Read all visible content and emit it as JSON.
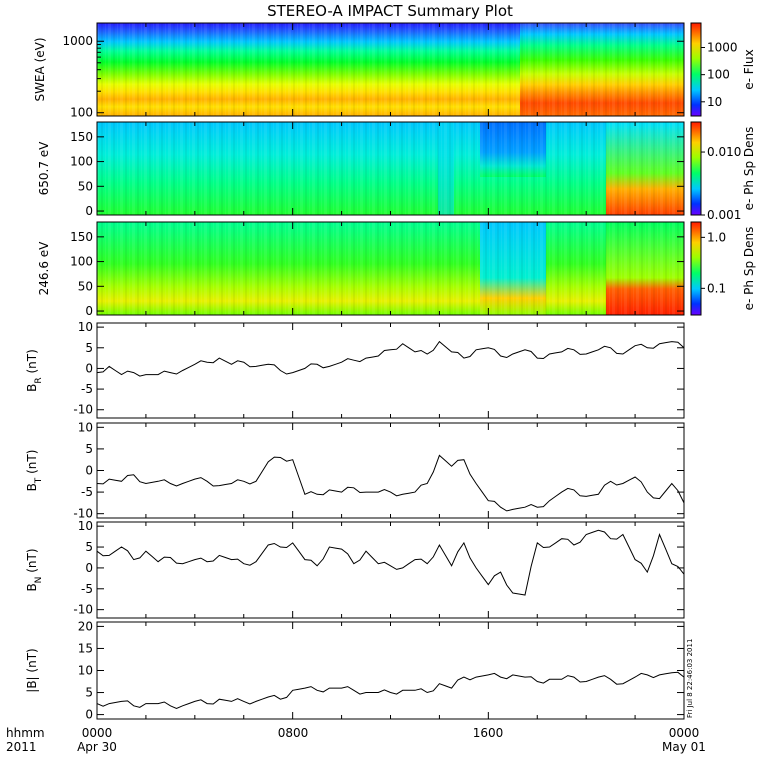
{
  "title": "STEREO-A IMPACT Summary Plot",
  "footer": {
    "left_top": "hhmm",
    "left_bottom": "2011",
    "xticks": [
      "0000",
      "0800",
      "1600",
      "0000"
    ],
    "xdates": [
      "Apr 30",
      "May 01"
    ],
    "stamp": "Fri Jul  8 22:46:03 2011"
  },
  "colors": {
    "line": "#000000",
    "background": "#ffffff"
  },
  "chart_data": [
    {
      "type": "heatmap",
      "name": "swea",
      "ylabel": "SWEA (eV)",
      "yscale": "log",
      "yticks": [
        "1000",
        "100"
      ],
      "ytick_values": [
        1000,
        100
      ],
      "ylim": [
        90,
        1800
      ],
      "colorbar_label": "e- Flux",
      "colorbar_scale": "log",
      "colorbar_ticks": [
        "1000",
        "100",
        "10"
      ],
      "colorbar_values": [
        1000,
        100,
        10
      ],
      "colorbar_range": [
        3,
        8000
      ]
    },
    {
      "type": "heatmap",
      "name": "pad650",
      "ylabel": "650.7 eV",
      "yticks": [
        "150",
        "100",
        "50",
        "0"
      ],
      "ytick_values": [
        150,
        100,
        50,
        0
      ],
      "ylim": [
        -8,
        180
      ],
      "colorbar_label": "e- Ph Sp Dens",
      "colorbar_scale": "log",
      "colorbar_ticks": [
        "0.010",
        "0.001"
      ],
      "colorbar_values": [
        0.01,
        0.001
      ],
      "colorbar_range": [
        0.001,
        0.03
      ]
    },
    {
      "type": "heatmap",
      "name": "pad246",
      "ylabel": "246.6 eV",
      "yticks": [
        "150",
        "100",
        "50",
        "0"
      ],
      "ytick_values": [
        150,
        100,
        50,
        0
      ],
      "ylim": [
        -8,
        180
      ],
      "colorbar_label": "e- Ph Sp Dens",
      "colorbar_scale": "log",
      "colorbar_ticks": [
        "1.0",
        "0.1"
      ],
      "colorbar_values": [
        1.0,
        0.1
      ],
      "colorbar_range": [
        0.03,
        2.0
      ]
    },
    {
      "type": "line",
      "name": "br",
      "ylabel_main": "B",
      "ylabel_sub": "R",
      "ylabel_unit": " (nT)",
      "ylim": [
        -12,
        11
      ],
      "yticks": [
        "10",
        "5",
        "0",
        "-5",
        "-10"
      ],
      "ytick_values": [
        10,
        5,
        0,
        -5,
        -10
      ],
      "x_hours": [
        0,
        0.5,
        1,
        1.5,
        2,
        2.5,
        3,
        3.5,
        4,
        4.5,
        5,
        5.5,
        6,
        6.5,
        7,
        7.5,
        8,
        8.5,
        9,
        9.5,
        10,
        10.5,
        11,
        11.5,
        12,
        12.5,
        13,
        13.5,
        14,
        14.5,
        15,
        15.5,
        16,
        16.5,
        17,
        17.5,
        18,
        18.5,
        19,
        19.5,
        20,
        20.5,
        21,
        21.5,
        22,
        22.5,
        23,
        23.5,
        24
      ],
      "values": [
        -1,
        0.5,
        -1.5,
        -1,
        -1.5,
        -1.5,
        -1,
        -0.5,
        1,
        1.5,
        2.5,
        1,
        1.5,
        0.5,
        1,
        -0.5,
        -1,
        0,
        1,
        0.5,
        1.5,
        2,
        2.5,
        3,
        4.5,
        6,
        4,
        3.5,
        6.5,
        4,
        2.5,
        4.5,
        5,
        3,
        3.5,
        4.5,
        2.5,
        3.5,
        4,
        4.5,
        3.5,
        4.5,
        5,
        3.5,
        5.5,
        5,
        6,
        6.5,
        5
      ]
    },
    {
      "type": "line",
      "name": "bt",
      "ylabel_main": "B",
      "ylabel_sub": "T",
      "ylabel_unit": " (nT)",
      "ylim": [
        -11,
        11
      ],
      "yticks": [
        "10",
        "5",
        "0",
        "-5",
        "-10"
      ],
      "ytick_values": [
        10,
        5,
        0,
        -5,
        -10
      ],
      "x_hours": [
        0,
        0.5,
        1,
        1.5,
        2,
        2.5,
        3,
        3.5,
        4,
        4.5,
        5,
        5.5,
        6,
        6.5,
        7,
        7.5,
        8,
        8.5,
        9,
        9.5,
        10,
        10.5,
        11,
        11.5,
        12,
        12.5,
        13,
        13.5,
        14,
        14.5,
        15,
        15.5,
        16,
        16.5,
        17,
        17.5,
        18,
        18.5,
        19,
        19.5,
        20,
        20.5,
        21,
        21.5,
        22,
        22.5,
        23,
        23.5,
        24
      ],
      "values": [
        -3,
        -2,
        -2.5,
        -1,
        -3,
        -2.5,
        -3,
        -3,
        -2,
        -2.5,
        -3.5,
        -3,
        -2.5,
        -2.5,
        2,
        3,
        2.5,
        -5.5,
        -5.5,
        -4.5,
        -5,
        -4,
        -5,
        -5,
        -5,
        -5.5,
        -5,
        -3,
        3.5,
        1,
        2.5,
        -3,
        -7,
        -8.5,
        -9,
        -8.5,
        -8.5,
        -7,
        -5,
        -4.5,
        -6,
        -5.5,
        -2.5,
        -3,
        -1.5,
        -5,
        -6.5,
        -3,
        -7.5
      ]
    },
    {
      "type": "line",
      "name": "bn",
      "ylabel_main": "B",
      "ylabel_sub": "N",
      "ylabel_unit": " (nT)",
      "ylim": [
        -12,
        11
      ],
      "yticks": [
        "10",
        "5",
        "0",
        "-5",
        "-10"
      ],
      "ytick_values": [
        10,
        5,
        0,
        -5,
        -10
      ],
      "x_hours": [
        0,
        0.5,
        1,
        1.5,
        2,
        2.5,
        3,
        3.5,
        4,
        4.5,
        5,
        5.5,
        6,
        6.5,
        7,
        7.5,
        8,
        8.5,
        9,
        9.5,
        10,
        10.5,
        11,
        11.5,
        12,
        12.5,
        13,
        13.5,
        14,
        14.5,
        15,
        15.5,
        16,
        16.5,
        17,
        17.5,
        18,
        18.5,
        19,
        19.5,
        20,
        20.5,
        21,
        21.5,
        22,
        22.5,
        23,
        23.5,
        24
      ],
      "values": [
        4,
        3,
        5,
        2,
        4,
        1.5,
        2.5,
        1,
        2,
        1.5,
        3,
        2,
        1,
        1.5,
        5.5,
        5,
        6,
        2,
        0.5,
        5,
        4.5,
        1,
        4,
        1,
        0.5,
        0,
        2,
        1,
        5.5,
        0.5,
        6,
        0,
        -4,
        -1,
        -6,
        -6.5,
        6,
        5,
        7,
        5.5,
        8,
        9,
        7,
        8,
        2,
        -1,
        8,
        1,
        -1.5
      ]
    },
    {
      "type": "line",
      "name": "bmag",
      "ylabel_main": "|B|",
      "ylabel_sub": "",
      "ylabel_unit": " (nT)",
      "ylim": [
        -1,
        21
      ],
      "yticks": [
        "20",
        "15",
        "10",
        "5",
        "0"
      ],
      "ytick_values": [
        20,
        15,
        10,
        5,
        0
      ],
      "x_hours": [
        0,
        0.5,
        1,
        1.5,
        2,
        2.5,
        3,
        3.5,
        4,
        4.5,
        5,
        5.5,
        6,
        6.5,
        7,
        7.5,
        8,
        8.5,
        9,
        9.5,
        10,
        10.5,
        11,
        11.5,
        12,
        12.5,
        13,
        13.5,
        14,
        14.5,
        15,
        15.5,
        16,
        16.5,
        17,
        17.5,
        18,
        18.5,
        19,
        19.5,
        20,
        20.5,
        21,
        21.5,
        22,
        22.5,
        23,
        23.5,
        24
      ],
      "values": [
        2.5,
        2.5,
        3,
        2,
        2.5,
        2.5,
        2,
        2,
        3,
        2.5,
        3.5,
        3,
        3,
        3,
        4,
        3.5,
        5.5,
        6,
        5.5,
        6,
        6,
        5.5,
        5,
        5,
        5,
        5.5,
        5.5,
        5,
        7,
        6,
        8.5,
        8.5,
        9,
        8.5,
        9,
        8.5,
        7.5,
        8,
        8,
        8.5,
        7.5,
        8.5,
        8,
        7,
        8.5,
        9,
        9,
        9.5,
        8.5
      ]
    }
  ]
}
